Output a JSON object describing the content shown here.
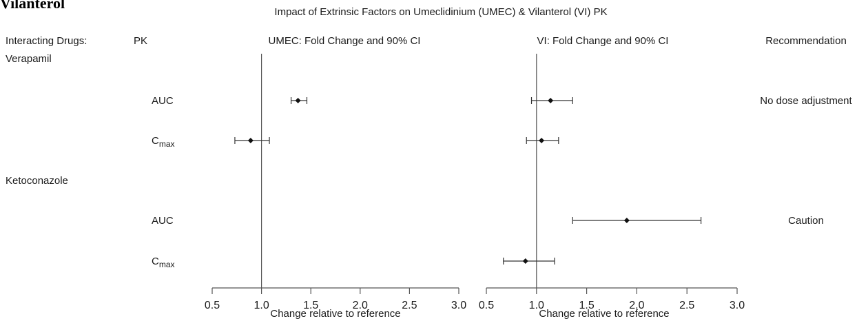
{
  "cut_header": "Vilanterol",
  "chart_data": {
    "type": "forest",
    "title": "Impact of Extrinsic Factors on Umeclidinium (UMEC) & Vilanterol (VI) PK",
    "column_headers": {
      "drugs": "Interacting Drugs:",
      "pk": "PK",
      "umec": "UMEC: Fold Change and 90% CI",
      "vi": "VI: Fold Change and 90% CI",
      "recommendation": "Recommendation"
    },
    "xlabel": "Change relative to reference",
    "xlim": [
      0.5,
      3.0
    ],
    "reference_line": 1.0,
    "ticks": [
      "0.5",
      "1.0",
      "1.5",
      "2.0",
      "2.5",
      "3.0"
    ],
    "groups": [
      {
        "drug": "Verapamil",
        "rows": [
          {
            "pk": "AUC",
            "pk_sub": "",
            "umec": {
              "est": 1.37,
              "lo": 1.3,
              "hi": 1.46
            },
            "vi": {
              "est": 1.14,
              "lo": 0.95,
              "hi": 1.36
            },
            "recommendation": "No dose adjustment"
          },
          {
            "pk": "C",
            "pk_sub": "max",
            "umec": {
              "est": 0.89,
              "lo": 0.73,
              "hi": 1.08
            },
            "vi": {
              "est": 1.05,
              "lo": 0.9,
              "hi": 1.22
            },
            "recommendation": ""
          }
        ]
      },
      {
        "drug": "Ketoconazole",
        "rows": [
          {
            "pk": "AUC",
            "pk_sub": "",
            "umec": null,
            "vi": {
              "est": 1.9,
              "lo": 1.36,
              "hi": 2.64
            },
            "recommendation": "Caution"
          },
          {
            "pk": "C",
            "pk_sub": "max",
            "umec": null,
            "vi": {
              "est": 0.89,
              "lo": 0.67,
              "hi": 1.18
            },
            "recommendation": ""
          }
        ]
      }
    ]
  }
}
